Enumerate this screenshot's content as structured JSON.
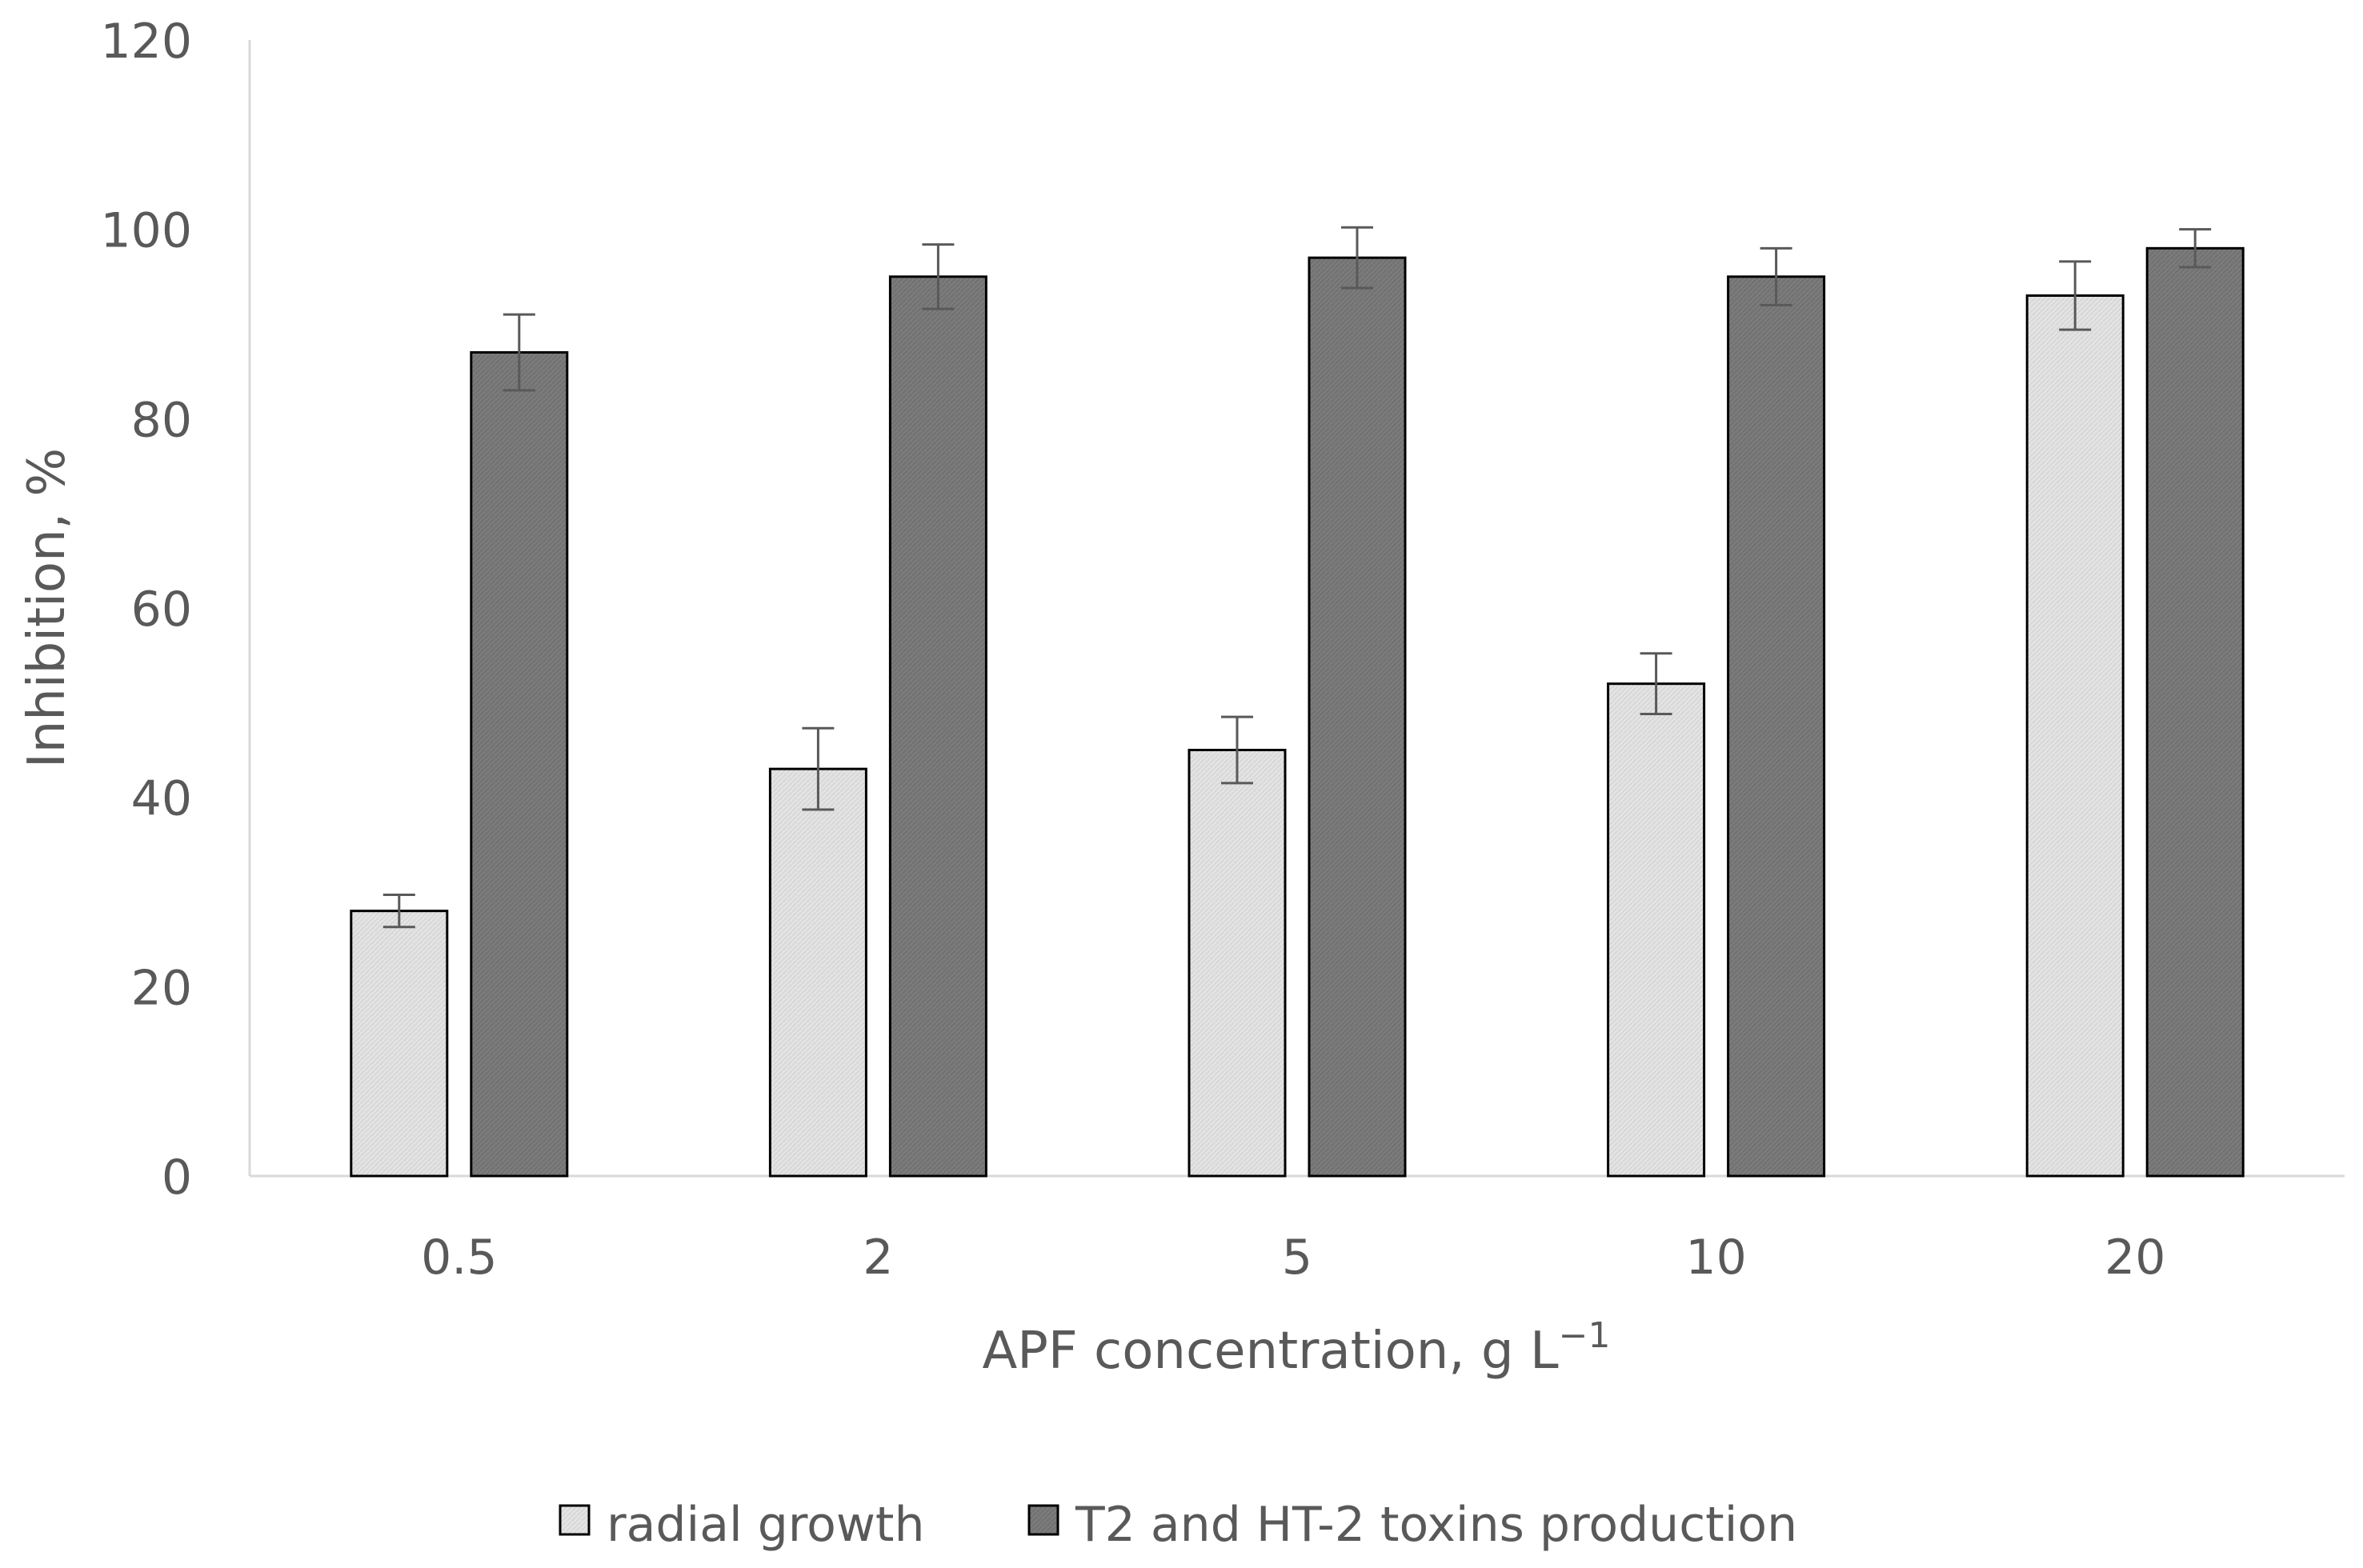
{
  "chart_data": {
    "type": "bar",
    "title": "",
    "xlabel": "APF concentration, g L",
    "xlabel_sup": "−1",
    "ylabel": "Inhibition, %",
    "categories": [
      "0.5",
      "2",
      "5",
      "10",
      "20"
    ],
    "ylim": [
      0,
      120
    ],
    "yticks": [
      "0",
      "20",
      "40",
      "60",
      "80",
      "100",
      "120"
    ],
    "grid": false,
    "legend_position": "bottom",
    "series": [
      {
        "name": "radial growth",
        "color": "#e3e3e3",
        "values": [
          28,
          43,
          45,
          52,
          93
        ],
        "errors": [
          1.7,
          4.3,
          3.5,
          3.2,
          3.6
        ]
      },
      {
        "name": "T2 and HT-2 toxins production",
        "color": "#7f7f7f",
        "values": [
          87,
          95,
          97,
          95,
          98
        ],
        "errors": [
          4.0,
          3.4,
          3.2,
          3.0,
          2.0
        ]
      }
    ]
  }
}
